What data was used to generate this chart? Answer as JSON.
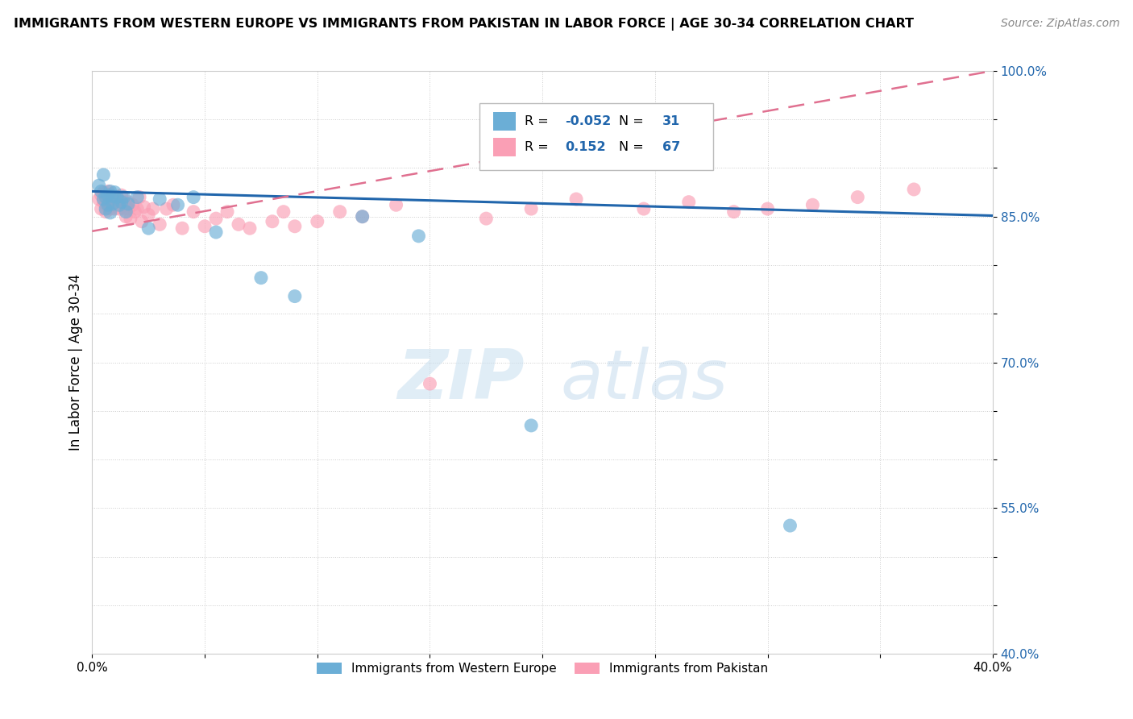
{
  "title": "IMMIGRANTS FROM WESTERN EUROPE VS IMMIGRANTS FROM PAKISTAN IN LABOR FORCE | AGE 30-34 CORRELATION CHART",
  "source": "Source: ZipAtlas.com",
  "ylabel": "In Labor Force | Age 30-34",
  "xlim": [
    0.0,
    0.4
  ],
  "ylim": [
    0.4,
    1.0
  ],
  "xticks": [
    0.0,
    0.05,
    0.1,
    0.15,
    0.2,
    0.25,
    0.3,
    0.35,
    0.4
  ],
  "yticks": [
    0.4,
    0.45,
    0.5,
    0.55,
    0.6,
    0.65,
    0.7,
    0.75,
    0.8,
    0.85,
    0.9,
    0.95,
    1.0
  ],
  "ytick_labels": [
    "40.0%",
    "",
    "",
    "55.0%",
    "",
    "",
    "70.0%",
    "",
    "",
    "85.0%",
    "",
    "",
    "100.0%"
  ],
  "R_blue": -0.052,
  "N_blue": 31,
  "R_pink": 0.152,
  "N_pink": 67,
  "blue_color": "#6baed6",
  "pink_color": "#fa9fb5",
  "blue_line_color": "#2166ac",
  "pink_line_color": "#e07090",
  "watermark_zip": "ZIP",
  "watermark_atlas": "atlas",
  "blue_trend_x": [
    0.0,
    0.4
  ],
  "blue_trend_y": [
    0.876,
    0.851
  ],
  "pink_trend_x": [
    0.0,
    0.4
  ],
  "pink_trend_y": [
    0.835,
    1.0
  ],
  "blue_scatter_x": [
    0.003,
    0.004,
    0.005,
    0.005,
    0.006,
    0.006,
    0.007,
    0.007,
    0.008,
    0.008,
    0.009,
    0.009,
    0.01,
    0.011,
    0.012,
    0.013,
    0.014,
    0.015,
    0.016,
    0.02,
    0.025,
    0.03,
    0.038,
    0.045,
    0.055,
    0.075,
    0.09,
    0.12,
    0.145,
    0.195,
    0.31
  ],
  "blue_scatter_y": [
    0.882,
    0.876,
    0.868,
    0.893,
    0.87,
    0.858,
    0.872,
    0.862,
    0.876,
    0.854,
    0.871,
    0.863,
    0.875,
    0.87,
    0.862,
    0.865,
    0.87,
    0.855,
    0.863,
    0.87,
    0.838,
    0.868,
    0.862,
    0.87,
    0.834,
    0.787,
    0.768,
    0.85,
    0.83,
    0.635,
    0.532
  ],
  "pink_scatter_x": [
    0.003,
    0.004,
    0.004,
    0.005,
    0.005,
    0.006,
    0.006,
    0.006,
    0.007,
    0.007,
    0.007,
    0.008,
    0.008,
    0.008,
    0.009,
    0.009,
    0.01,
    0.01,
    0.011,
    0.011,
    0.012,
    0.012,
    0.013,
    0.013,
    0.014,
    0.014,
    0.015,
    0.015,
    0.016,
    0.016,
    0.017,
    0.018,
    0.019,
    0.02,
    0.021,
    0.022,
    0.023,
    0.025,
    0.027,
    0.03,
    0.033,
    0.036,
    0.04,
    0.045,
    0.05,
    0.055,
    0.06,
    0.065,
    0.07,
    0.08,
    0.085,
    0.09,
    0.1,
    0.11,
    0.12,
    0.135,
    0.15,
    0.175,
    0.195,
    0.215,
    0.245,
    0.265,
    0.285,
    0.3,
    0.32,
    0.34,
    0.365
  ],
  "pink_scatter_y": [
    0.868,
    0.872,
    0.858,
    0.865,
    0.875,
    0.862,
    0.855,
    0.871,
    0.86,
    0.868,
    0.876,
    0.858,
    0.865,
    0.872,
    0.862,
    0.87,
    0.858,
    0.866,
    0.862,
    0.87,
    0.858,
    0.865,
    0.86,
    0.872,
    0.858,
    0.865,
    0.85,
    0.862,
    0.858,
    0.865,
    0.848,
    0.862,
    0.855,
    0.858,
    0.87,
    0.845,
    0.86,
    0.852,
    0.858,
    0.842,
    0.858,
    0.862,
    0.838,
    0.855,
    0.84,
    0.848,
    0.855,
    0.842,
    0.838,
    0.845,
    0.855,
    0.84,
    0.845,
    0.855,
    0.85,
    0.862,
    0.678,
    0.848,
    0.858,
    0.868,
    0.858,
    0.865,
    0.855,
    0.858,
    0.862,
    0.87,
    0.878
  ]
}
